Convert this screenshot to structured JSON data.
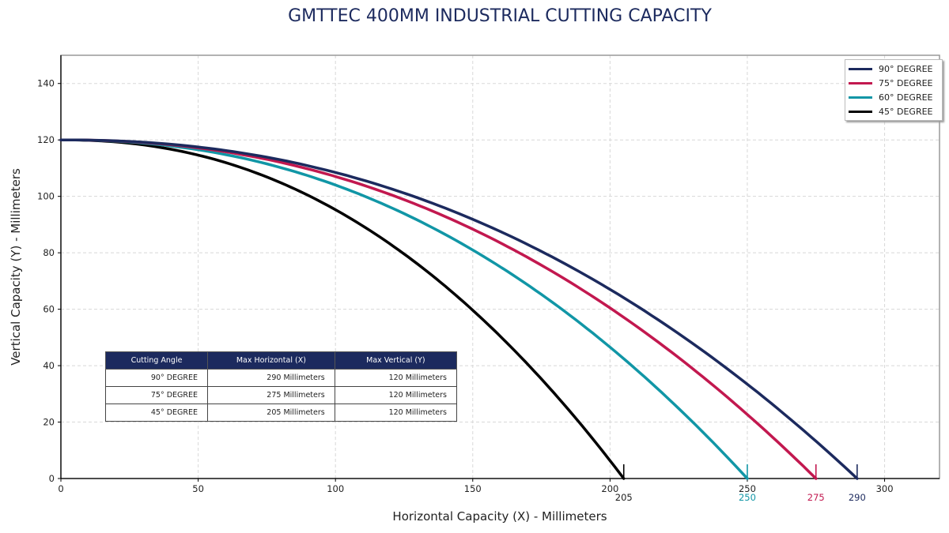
{
  "chart_data": {
    "type": "line",
    "title": "GMTTEC 400MM INDUSTRIAL CUTTING CAPACITY",
    "xlabel": "Horizontal Capacity (X) - Millimeters",
    "ylabel": "Vertical Capacity (Y) - Millimeters",
    "xlim": [
      0,
      320
    ],
    "ylim": [
      0,
      150
    ],
    "xticks": [
      0,
      50,
      100,
      150,
      200,
      250,
      300
    ],
    "yticks": [
      0,
      20,
      40,
      60,
      80,
      100,
      120,
      140
    ],
    "grid": true,
    "legend_position": "top-right",
    "series": [
      {
        "name": "90° DEGREE",
        "color": "#1c2a5e",
        "max_x": 290,
        "max_y": 120,
        "x": [
          0,
          50,
          100,
          150,
          200,
          250,
          290
        ],
        "y": [
          120,
          117.9,
          110.7,
          94.5,
          68.3,
          33.2,
          0
        ]
      },
      {
        "name": "75° DEGREE",
        "color": "#c2184f",
        "max_x": 275,
        "max_y": 120,
        "x": [
          0,
          50,
          100,
          150,
          200,
          250,
          275
        ],
        "y": [
          120,
          117.6,
          109.7,
          92.1,
          62.4,
          20.2,
          0
        ]
      },
      {
        "name": "60° DEGREE",
        "color": "#1196a6",
        "max_x": 250,
        "max_y": 120,
        "x": [
          0,
          50,
          100,
          150,
          200,
          250
        ],
        "y": [
          120,
          117.2,
          107.6,
          80.4,
          46.9,
          0
        ]
      },
      {
        "name": "45° DEGREE",
        "color": "#000000",
        "max_x": 205,
        "max_y": 120,
        "x": [
          0,
          50,
          100,
          150,
          180,
          205
        ],
        "y": [
          120,
          114.3,
          96.7,
          59.2,
          30.5,
          0
        ]
      }
    ],
    "curve_exponent": 2.2,
    "endpoint_labels": [
      {
        "value": "205",
        "color": "#1c1c1c"
      },
      {
        "value": "250",
        "color": "#1196a6"
      },
      {
        "value": "275",
        "color": "#c2184f"
      },
      {
        "value": "290",
        "color": "#1c2a5e"
      }
    ]
  },
  "table": {
    "headers": [
      "Cutting Angle",
      "Max Horizontal (X)",
      "Max Vertical (Y)"
    ],
    "rows": [
      [
        "90° DEGREE",
        "290 Millimeters",
        "120 Millimeters"
      ],
      [
        "75° DEGREE",
        "275 Millimeters",
        "120 Millimeters"
      ],
      [
        "45° DEGREE",
        "205 Millimeters",
        "120 Millimeters"
      ]
    ]
  }
}
